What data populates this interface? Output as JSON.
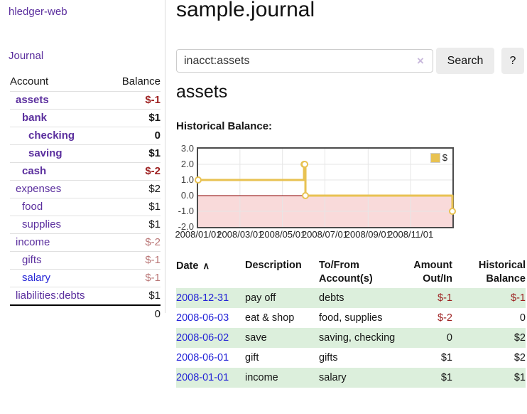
{
  "sidebar": {
    "brand": "hledger-web",
    "nav": {
      "journal": "Journal"
    },
    "accounts": {
      "headers": {
        "account": "Account",
        "balance": "Balance"
      },
      "rows": [
        {
          "name": "assets",
          "balance": "$-1"
        },
        {
          "name": "bank",
          "balance": "$1"
        },
        {
          "name": "checking",
          "balance": "0"
        },
        {
          "name": "saving",
          "balance": "$1"
        },
        {
          "name": "cash",
          "balance": "$-2"
        },
        {
          "name": "expenses",
          "balance": "$2"
        },
        {
          "name": "food",
          "balance": "$1"
        },
        {
          "name": "supplies",
          "balance": "$1"
        },
        {
          "name": "income",
          "balance": "$-2"
        },
        {
          "name": "gifts",
          "balance": "$-1"
        },
        {
          "name": "salary",
          "balance": "$-1"
        },
        {
          "name": "liabilities:debts",
          "balance": "$1"
        }
      ],
      "total": "0"
    }
  },
  "main": {
    "title": "sample.journal",
    "search": {
      "value": "inacct:assets",
      "clear_icon": "×",
      "search_button": "Search",
      "help_button": "?"
    },
    "account_heading": "assets",
    "chart_label": "Historical Balance:",
    "register": {
      "headers": {
        "date": "Date",
        "sort_icon": "∧",
        "description": "Description",
        "accounts": "To/From Account(s)",
        "amount": "Amount Out/In",
        "balance": "Historical Balance"
      },
      "rows": [
        {
          "date": "2008-12-31",
          "description": "pay off",
          "accounts": "debts",
          "amount": "$-1",
          "balance": "$-1"
        },
        {
          "date": "2008-06-03",
          "description": "eat & shop",
          "accounts": "food, supplies",
          "amount": "$-2",
          "balance": "0"
        },
        {
          "date": "2008-06-02",
          "description": "save",
          "accounts": "saving, checking",
          "amount": "0",
          "balance": "$2"
        },
        {
          "date": "2008-06-01",
          "description": "gift",
          "accounts": "gifts",
          "amount": "$1",
          "balance": "$2"
        },
        {
          "date": "2008-01-01",
          "description": "income",
          "accounts": "salary",
          "amount": "$1",
          "balance": "$1"
        }
      ]
    }
  },
  "chart_data": {
    "type": "line",
    "title": "Historical Balance:",
    "step": "after",
    "x_start": "2008-01-01",
    "x_end": "2008-12-31",
    "ylim": [
      -2,
      3
    ],
    "yticks": [
      "3.0",
      "2.0",
      "1.0",
      "0.0",
      "-1.0",
      "-2.0"
    ],
    "xticks": [
      "2008/01/01",
      "2008/03/01",
      "2008/05/01",
      "2008/07/01",
      "2008/09/01",
      "2008/11/01"
    ],
    "series": [
      {
        "name": "$",
        "color": "#e8c252",
        "points": [
          [
            "2008-01-01",
            1
          ],
          [
            "2008-06-01",
            2
          ],
          [
            "2008-06-02",
            2
          ],
          [
            "2008-06-03",
            0
          ],
          [
            "2008-12-31",
            -1
          ]
        ]
      }
    ],
    "legend": {
      "position": "top-right",
      "entries": [
        "$"
      ]
    },
    "colors": {
      "negative_region": "#f9dada",
      "zero_line": "#8b0000",
      "grid": "#e6e6e6",
      "border": "#4c4c4c"
    }
  },
  "colors": {
    "brand_purple": "#5b2f9e",
    "link_blue": "#2424d6",
    "negative": "#9d1f1f",
    "negative_light": "#b97575",
    "row_stripe_green": "#dcefdc",
    "series_gold": "#e8c252",
    "button_gray": "#ececec"
  }
}
